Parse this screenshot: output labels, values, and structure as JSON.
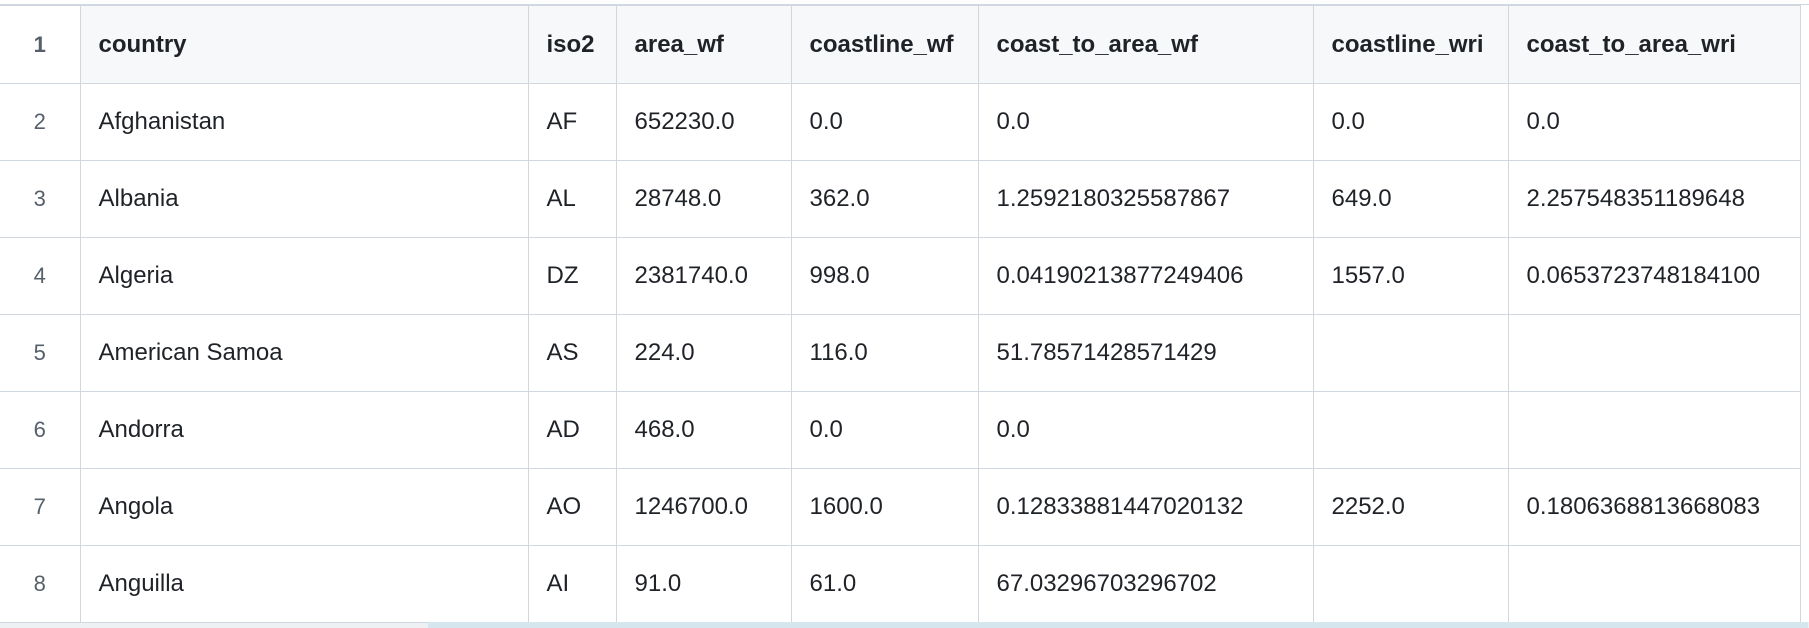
{
  "table": {
    "line_numbers": [
      "1",
      "2",
      "3",
      "4",
      "5",
      "6",
      "7",
      "8"
    ],
    "headers": [
      "country",
      "iso2",
      "area_wf",
      "coastline_wf",
      "coast_to_area_wf",
      "coastline_wri",
      "coast_to_area_wri"
    ],
    "rows": [
      [
        "Afghanistan",
        "AF",
        "652230.0",
        "0.0",
        "0.0",
        "0.0",
        "0.0"
      ],
      [
        "Albania",
        "AL",
        "28748.0",
        "362.0",
        "1.2592180325587867",
        "649.0",
        "2.257548351189648"
      ],
      [
        "Algeria",
        "DZ",
        "2381740.0",
        "998.0",
        "0.04190213877249406",
        "1557.0",
        "0.0653723748184100"
      ],
      [
        "American Samoa",
        "AS",
        "224.0",
        "116.0",
        "51.78571428571429",
        "",
        ""
      ],
      [
        "Andorra",
        "AD",
        "468.0",
        "0.0",
        "0.0",
        "",
        ""
      ],
      [
        "Angola",
        "AO",
        "1246700.0",
        "1600.0",
        "0.12833881447020132",
        "2252.0",
        "0.1806368813668083"
      ],
      [
        "Anguilla",
        "AI",
        "91.0",
        "61.0",
        "67.03296703296702",
        "",
        ""
      ]
    ]
  }
}
